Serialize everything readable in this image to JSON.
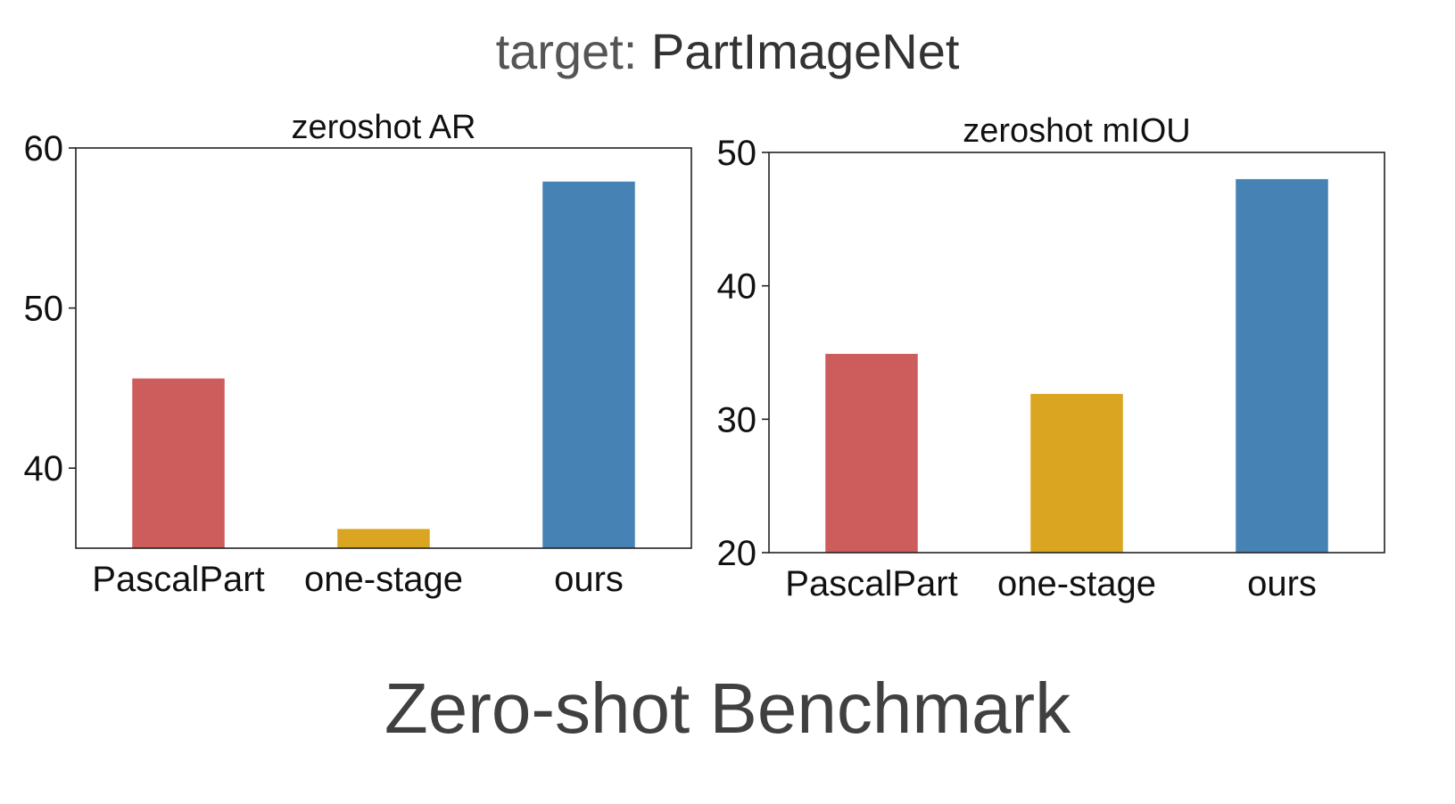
{
  "header": {
    "prefix": "target: ",
    "target": "PartImageNet"
  },
  "footer": {
    "title": "Zero-shot Benchmark"
  },
  "chart_data": [
    {
      "type": "bar",
      "title": "zeroshot AR",
      "xlabel": "",
      "ylabel": "",
      "categories": [
        "PascalPart",
        "one-stage",
        "ours"
      ],
      "values": [
        45.6,
        36.2,
        57.9
      ],
      "colors": [
        "#cd5c5c",
        "#daa520",
        "#4682b4"
      ],
      "ylim": [
        35,
        60
      ],
      "yticks": [
        40,
        50,
        60
      ],
      "grid": false,
      "legend": "none"
    },
    {
      "type": "bar",
      "title": "zeroshot mIOU",
      "xlabel": "",
      "ylabel": "",
      "categories": [
        "PascalPart",
        "one-stage",
        "ours"
      ],
      "values": [
        34.9,
        31.9,
        48.0
      ],
      "colors": [
        "#cd5c5c",
        "#daa520",
        "#4682b4"
      ],
      "ylim": [
        20,
        50
      ],
      "yticks": [
        20,
        30,
        40,
        50
      ],
      "grid": false,
      "legend": "none"
    }
  ]
}
